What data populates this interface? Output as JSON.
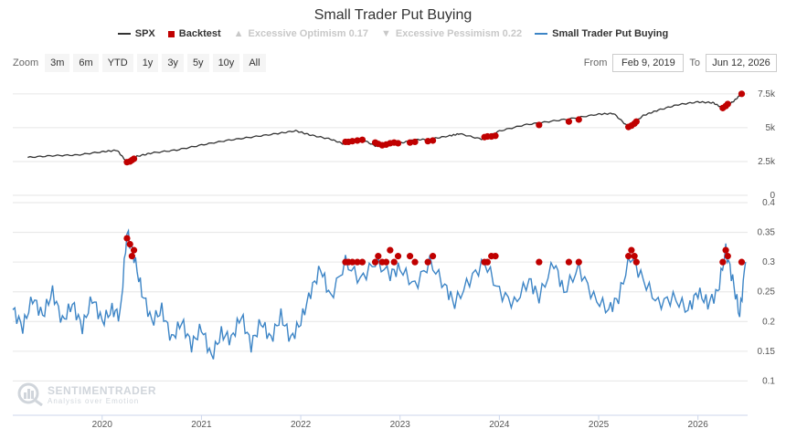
{
  "title": "Small Trader Put Buying",
  "legend": [
    {
      "label": "SPX",
      "color": "#333333",
      "symbol": "line",
      "active": true
    },
    {
      "label": "Backtest",
      "color": "#c00000",
      "symbol": "square",
      "active": true
    },
    {
      "label": "Excessive Optimism 0.17",
      "color": "#c8c8c8",
      "symbol": "triangle-up",
      "active": false
    },
    {
      "label": "Excessive Pessimism 0.22",
      "color": "#c8c8c8",
      "symbol": "triangle-down",
      "active": false
    },
    {
      "label": "Small Trader Put Buying",
      "color": "#3d85c6",
      "symbol": "line",
      "active": true
    }
  ],
  "zoom": {
    "label": "Zoom",
    "buttons": [
      "3m",
      "6m",
      "YTD",
      "1y",
      "3y",
      "5y",
      "10y",
      "All"
    ]
  },
  "range": {
    "from_label": "From",
    "from_value": "Feb 9, 2019",
    "to_label": "To",
    "to_value": "Jun 12, 2026"
  },
  "watermark": {
    "main": "SENTIMENTRADER",
    "sub": "Analysis over Emotion"
  },
  "chart_data": [
    {
      "type": "line",
      "title": "Small Trader Put Buying",
      "series": [
        {
          "name": "SPX",
          "points": [
            [
              2019.25,
              2800
            ],
            [
              2019.5,
              2930
            ],
            [
              2019.75,
              2980
            ],
            [
              2020.0,
              3220
            ],
            [
              2020.15,
              3330
            ],
            [
              2020.25,
              2450
            ],
            [
              2020.35,
              2880
            ],
            [
              2020.5,
              3130
            ],
            [
              2020.75,
              3350
            ],
            [
              2021.0,
              3720
            ],
            [
              2021.25,
              4050
            ],
            [
              2021.5,
              4300
            ],
            [
              2021.75,
              4550
            ],
            [
              2021.95,
              4770
            ],
            [
              2022.1,
              4450
            ],
            [
              2022.3,
              4150
            ],
            [
              2022.45,
              3750
            ],
            [
              2022.6,
              4200
            ],
            [
              2022.75,
              3650
            ],
            [
              2022.9,
              3950
            ],
            [
              2023.0,
              3850
            ],
            [
              2023.15,
              4100
            ],
            [
              2023.3,
              4150
            ],
            [
              2023.5,
              4400
            ],
            [
              2023.6,
              4550
            ],
            [
              2023.82,
              4150
            ],
            [
              2024.0,
              4750
            ],
            [
              2024.25,
              5200
            ],
            [
              2024.5,
              5450
            ],
            [
              2024.75,
              5700
            ],
            [
              2025.0,
              6000
            ],
            [
              2025.15,
              6050
            ],
            [
              2025.3,
              5050
            ],
            [
              2025.45,
              5900
            ],
            [
              2025.6,
              6300
            ],
            [
              2025.8,
              6700
            ],
            [
              2026.0,
              6900
            ],
            [
              2026.15,
              6850
            ],
            [
              2026.25,
              6450
            ],
            [
              2026.35,
              6900
            ],
            [
              2026.44,
              7500
            ]
          ]
        },
        {
          "name": "Small Trader Put Buying",
          "points": [
            [
              2019.1,
              0.22
            ],
            [
              2019.2,
              0.19
            ],
            [
              2019.3,
              0.24
            ],
            [
              2019.4,
              0.21
            ],
            [
              2019.5,
              0.25
            ],
            [
              2019.6,
              0.2
            ],
            [
              2019.7,
              0.23
            ],
            [
              2019.8,
              0.19
            ],
            [
              2019.9,
              0.24
            ],
            [
              2020.0,
              0.2
            ],
            [
              2020.1,
              0.22
            ],
            [
              2020.18,
              0.21
            ],
            [
              2020.25,
              0.35
            ],
            [
              2020.32,
              0.31
            ],
            [
              2020.4,
              0.25
            ],
            [
              2020.5,
              0.2
            ],
            [
              2020.6,
              0.22
            ],
            [
              2020.7,
              0.17
            ],
            [
              2020.8,
              0.2
            ],
            [
              2020.9,
              0.16
            ],
            [
              2021.0,
              0.19
            ],
            [
              2021.1,
              0.14
            ],
            [
              2021.2,
              0.18
            ],
            [
              2021.3,
              0.17
            ],
            [
              2021.4,
              0.21
            ],
            [
              2021.5,
              0.16
            ],
            [
              2021.6,
              0.2
            ],
            [
              2021.7,
              0.17
            ],
            [
              2021.8,
              0.21
            ],
            [
              2021.9,
              0.17
            ],
            [
              2022.0,
              0.2
            ],
            [
              2022.1,
              0.25
            ],
            [
              2022.2,
              0.29
            ],
            [
              2022.3,
              0.24
            ],
            [
              2022.45,
              0.3
            ],
            [
              2022.6,
              0.27
            ],
            [
              2022.75,
              0.3
            ],
            [
              2022.9,
              0.28
            ],
            [
              2023.0,
              0.29
            ],
            [
              2023.15,
              0.26
            ],
            [
              2023.3,
              0.3
            ],
            [
              2023.45,
              0.26
            ],
            [
              2023.55,
              0.23
            ],
            [
              2023.7,
              0.27
            ],
            [
              2023.85,
              0.3
            ],
            [
              2024.0,
              0.25
            ],
            [
              2024.15,
              0.23
            ],
            [
              2024.3,
              0.27
            ],
            [
              2024.4,
              0.24
            ],
            [
              2024.55,
              0.3
            ],
            [
              2024.65,
              0.25
            ],
            [
              2024.8,
              0.29
            ],
            [
              2024.95,
              0.24
            ],
            [
              2025.1,
              0.22
            ],
            [
              2025.2,
              0.24
            ],
            [
              2025.32,
              0.31
            ],
            [
              2025.45,
              0.27
            ],
            [
              2025.6,
              0.23
            ],
            [
              2025.75,
              0.24
            ],
            [
              2025.9,
              0.22
            ],
            [
              2026.0,
              0.25
            ],
            [
              2026.1,
              0.23
            ],
            [
              2026.2,
              0.25
            ],
            [
              2026.28,
              0.32
            ],
            [
              2026.35,
              0.27
            ],
            [
              2026.42,
              0.21
            ],
            [
              2026.48,
              0.3
            ]
          ]
        }
      ],
      "backtest": [
        {
          "x": 2020.25,
          "spx": 2450,
          "put": 0.34
        },
        {
          "x": 2020.28,
          "spx": 2500,
          "put": 0.33
        },
        {
          "x": 2020.3,
          "spx": 2600,
          "put": 0.31
        },
        {
          "x": 2020.32,
          "spx": 2700,
          "put": 0.32
        },
        {
          "x": 2022.45,
          "spx": 3950,
          "put": 0.3
        },
        {
          "x": 2022.48,
          "spx": 3950,
          "put": 0.3
        },
        {
          "x": 2022.52,
          "spx": 4000,
          "put": 0.3
        },
        {
          "x": 2022.57,
          "spx": 4050,
          "put": 0.3
        },
        {
          "x": 2022.62,
          "spx": 4100,
          "put": 0.3
        },
        {
          "x": 2022.75,
          "spx": 3900,
          "put": 0.3
        },
        {
          "x": 2022.78,
          "spx": 3800,
          "put": 0.31
        },
        {
          "x": 2022.82,
          "spx": 3700,
          "put": 0.3
        },
        {
          "x": 2022.86,
          "spx": 3750,
          "put": 0.3
        },
        {
          "x": 2022.9,
          "spx": 3850,
          "put": 0.32
        },
        {
          "x": 2022.94,
          "spx": 3900,
          "put": 0.3
        },
        {
          "x": 2022.98,
          "spx": 3850,
          "put": 0.31
        },
        {
          "x": 2023.1,
          "spx": 3900,
          "put": 0.31
        },
        {
          "x": 2023.15,
          "spx": 3950,
          "put": 0.3
        },
        {
          "x": 2023.28,
          "spx": 4000,
          "put": 0.3
        },
        {
          "x": 2023.33,
          "spx": 4050,
          "put": 0.31
        },
        {
          "x": 2023.85,
          "spx": 4300,
          "put": 0.3
        },
        {
          "x": 2023.88,
          "spx": 4350,
          "put": 0.3
        },
        {
          "x": 2023.92,
          "spx": 4350,
          "put": 0.31
        },
        {
          "x": 2023.96,
          "spx": 4400,
          "put": 0.31
        },
        {
          "x": 2024.4,
          "spx": 5200,
          "put": 0.3
        },
        {
          "x": 2024.7,
          "spx": 5450,
          "put": 0.3
        },
        {
          "x": 2024.8,
          "spx": 5600,
          "put": 0.3
        },
        {
          "x": 2025.3,
          "spx": 5050,
          "put": 0.31
        },
        {
          "x": 2025.33,
          "spx": 5150,
          "put": 0.32
        },
        {
          "x": 2025.36,
          "spx": 5300,
          "put": 0.31
        },
        {
          "x": 2025.38,
          "spx": 5450,
          "put": 0.3
        },
        {
          "x": 2026.25,
          "spx": 6450,
          "put": 0.3
        },
        {
          "x": 2026.28,
          "spx": 6600,
          "put": 0.32
        },
        {
          "x": 2026.3,
          "spx": 6750,
          "put": 0.31
        },
        {
          "x": 2026.44,
          "spx": 7500,
          "put": 0.3
        }
      ],
      "x_ticks": [
        "2020",
        "2021",
        "2022",
        "2023",
        "2024",
        "2025",
        "2026"
      ],
      "x_tick_values": [
        2020,
        2021,
        2022,
        2023,
        2024,
        2025,
        2026
      ],
      "xlim": [
        2019.1,
        2026.5
      ],
      "upper_axis": {
        "ticks": [
          "7.5k",
          "5k",
          "2.5k",
          "0"
        ],
        "tick_values": [
          7500,
          5000,
          2500,
          0
        ],
        "ylim": [
          0,
          8500
        ]
      },
      "lower_axis": {
        "ticks": [
          "0.4",
          "0.35",
          "0.3",
          "0.25",
          "0.2",
          "0.15",
          "0.1"
        ],
        "tick_values": [
          0.4,
          0.35,
          0.3,
          0.25,
          0.2,
          0.15,
          0.1
        ],
        "ylim": [
          0.05,
          0.4
        ]
      },
      "grid": true,
      "legend_position": "top-center"
    }
  ]
}
